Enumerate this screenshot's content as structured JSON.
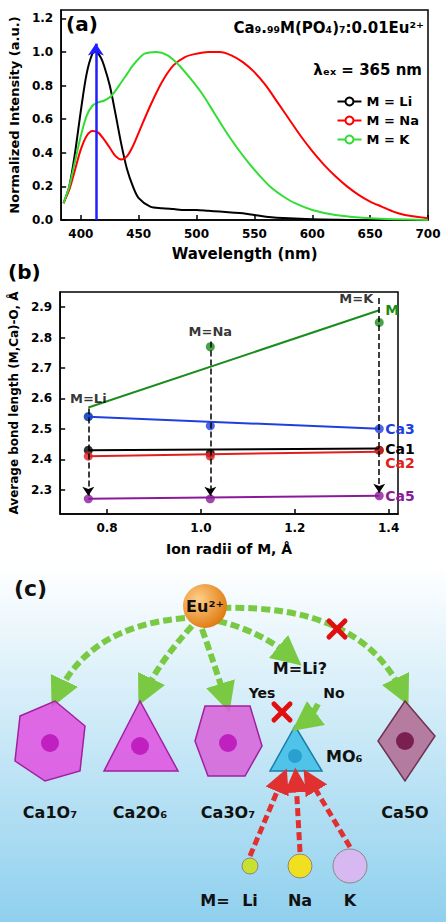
{
  "chart_data": [
    {
      "type": "line",
      "panel_label": "(a)",
      "annotations": [
        "Ca₉.₉₉M(PO₄)₇:0.01Eu²⁺",
        "λₑₓ = 365 nm"
      ],
      "x_label": "Wavelength (nm)",
      "y_label": "Normalized Intensity (a.u.)",
      "xlim": [
        383,
        700
      ],
      "xticks": [
        400,
        450,
        500,
        550,
        600,
        650,
        700
      ],
      "ylim": [
        0,
        1.25
      ],
      "yticks": [
        {
          "value": 0,
          "label": "0.0"
        },
        0.2,
        0.4,
        0.6,
        0.8,
        {
          "value": 1,
          "label": "1.0"
        },
        1.2
      ],
      "legend": "right",
      "series": [
        {
          "name": "M = Li",
          "color": "#000000",
          "x": [
            385,
            390,
            395,
            400,
            405,
            410,
            413,
            417,
            420,
            425,
            430,
            435,
            440,
            445,
            450,
            460,
            470,
            480,
            490,
            500,
            510,
            520,
            530,
            540,
            550,
            560,
            580,
            600,
            650,
            700
          ],
          "values": [
            0.1,
            0.2,
            0.4,
            0.65,
            0.87,
            0.99,
            1.0,
            0.97,
            0.92,
            0.8,
            0.63,
            0.45,
            0.3,
            0.2,
            0.13,
            0.08,
            0.07,
            0.065,
            0.06,
            0.06,
            0.055,
            0.05,
            0.045,
            0.04,
            0.03,
            0.02,
            0.01,
            0.005,
            0,
            0
          ]
        },
        {
          "name": "M = Na",
          "color": "#ff0000",
          "x": [
            385,
            390,
            395,
            400,
            405,
            410,
            415,
            420,
            425,
            430,
            435,
            440,
            445,
            450,
            460,
            470,
            480,
            490,
            500,
            510,
            520,
            530,
            540,
            550,
            560,
            570,
            580,
            590,
            600,
            610,
            620,
            630,
            640,
            650,
            660,
            670,
            680,
            690,
            700
          ],
          "values": [
            0.1,
            0.18,
            0.3,
            0.42,
            0.5,
            0.53,
            0.52,
            0.48,
            0.43,
            0.38,
            0.36,
            0.38,
            0.44,
            0.52,
            0.68,
            0.82,
            0.92,
            0.97,
            0.99,
            1.0,
            1.0,
            0.98,
            0.94,
            0.88,
            0.8,
            0.7,
            0.6,
            0.5,
            0.41,
            0.33,
            0.26,
            0.2,
            0.15,
            0.11,
            0.08,
            0.05,
            0.03,
            0.02,
            0.01
          ]
        },
        {
          "name": "M = K",
          "color": "#33dd33",
          "x": [
            385,
            390,
            395,
            400,
            405,
            410,
            415,
            420,
            425,
            430,
            435,
            440,
            445,
            450,
            455,
            465,
            475,
            485,
            495,
            505,
            515,
            525,
            535,
            545,
            555,
            565,
            575,
            585,
            600,
            620,
            650,
            700
          ],
          "values": [
            0.1,
            0.2,
            0.35,
            0.5,
            0.62,
            0.68,
            0.7,
            0.71,
            0.73,
            0.77,
            0.82,
            0.87,
            0.92,
            0.96,
            0.99,
            1.0,
            0.98,
            0.92,
            0.84,
            0.75,
            0.64,
            0.53,
            0.43,
            0.34,
            0.26,
            0.19,
            0.14,
            0.1,
            0.06,
            0.03,
            0.01,
            0
          ]
        }
      ],
      "vline": {
        "x": 413,
        "y": [
          0,
          1.05
        ],
        "color": "#1f1fff"
      }
    },
    {
      "type": "scatter",
      "panel_label": "(b)",
      "x_label": "Ion radii of M, Å",
      "y_label": "Average bond length (M,Ca)-O, Å",
      "xlim": [
        0.7,
        1.42
      ],
      "xticks": [
        0.8,
        {
          "value": 1,
          "label": "1.0"
        },
        1.2,
        1.4
      ],
      "ylim": [
        2.22,
        2.95
      ],
      "yticks": [
        2.3,
        2.4,
        2.5,
        2.6,
        2.7,
        2.8,
        2.9
      ],
      "x": [
        0.76,
        1.02,
        1.38
      ],
      "fit_x": [
        0.76,
        1.38
      ],
      "series": [
        {
          "name": "M",
          "color": "#1a8c1a",
          "values": [
            2.54,
            2.77,
            2.85
          ],
          "fit": [
            2.57,
            2.89
          ]
        },
        {
          "name": "Ca3",
          "color": "#1f3fe0",
          "values": [
            2.54,
            2.51,
            2.5
          ],
          "fit": [
            2.54,
            2.5
          ]
        },
        {
          "name": "Ca1",
          "color": "#000000",
          "values": [
            2.43,
            2.42,
            2.43
          ],
          "fit": [
            2.43,
            2.435
          ]
        },
        {
          "name": "Ca2",
          "color": "#e02020",
          "values": [
            2.41,
            2.41,
            2.43
          ],
          "fit": [
            2.41,
            2.425
          ]
        },
        {
          "name": "Ca5",
          "color": "#8a1a9a",
          "values": [
            2.27,
            2.27,
            2.28
          ],
          "fit": [
            2.27,
            2.28
          ]
        }
      ],
      "annotations": [
        {
          "text": "M=Li",
          "x": 0.76,
          "y": 2.6,
          "y_end": 2.28
        },
        {
          "text": "M=Na",
          "x": 1.02,
          "y": 2.82,
          "y_end": 2.28
        },
        {
          "text": "M=K",
          "x": 1.38,
          "y": 2.93,
          "y_end": 2.29
        }
      ]
    }
  ],
  "diagram": {
    "panel_label": "(c)",
    "center": "Eu²⁺",
    "question": "M=Li?",
    "yes": "Yes",
    "no": "No",
    "site": "MO₆",
    "polyhedra": [
      "Ca1O₇",
      "Ca2O₆",
      "Ca3O₇",
      "Ca5O"
    ],
    "ions_label": "M=",
    "ions": [
      "Li",
      "Na",
      "K"
    ]
  }
}
